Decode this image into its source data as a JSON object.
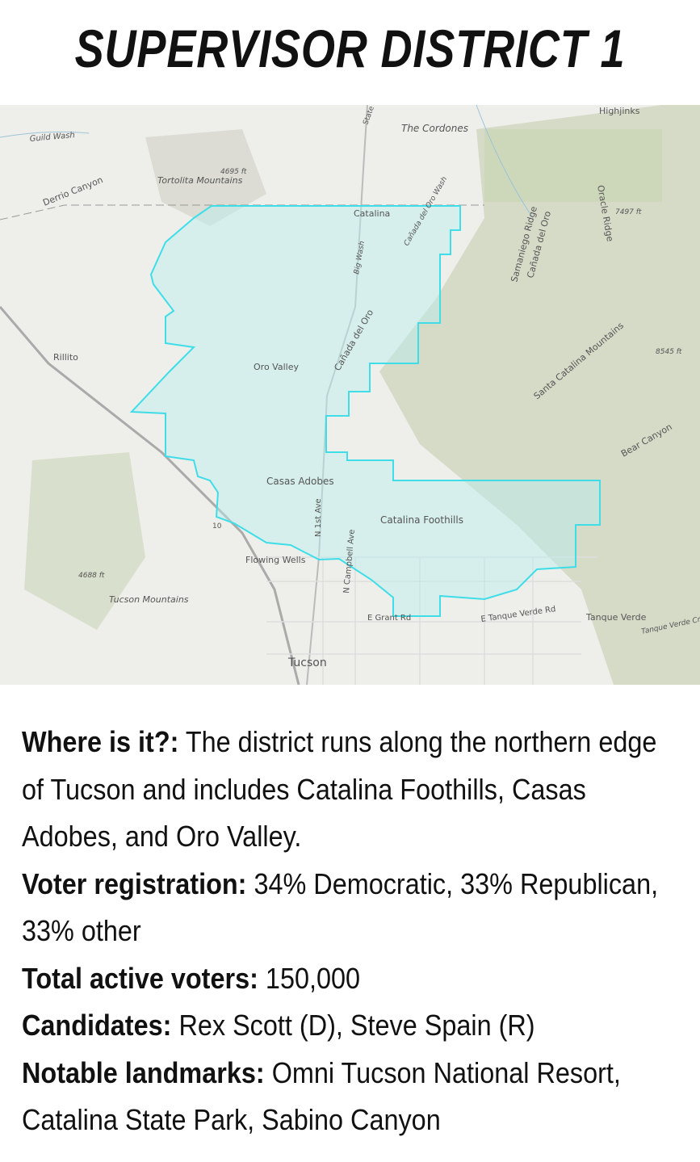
{
  "title": "SUPERVISOR DISTRICT 1",
  "map": {
    "labels": [
      "Guild Wash",
      "Derrio Canyon",
      "Tortolita Mountains",
      "4695 ft",
      "State",
      "The Cordones",
      "Highjinks",
      "Catalina",
      "Cañada del Oro Wash",
      "Big Wash",
      "Samaniego Ridge",
      "Cañada del Oro",
      "Oracle Ridge",
      "7497 ft",
      "Rillito",
      "Oro Valley",
      "Cañada del Oro",
      "Santa Catalina Mountains",
      "8545 ft",
      "Bear Canyon",
      "Casas Adobes",
      "N 1st Ave",
      "Catalina Foothills",
      "N Campbell Ave",
      "10",
      "Flowing Wells",
      "4688 ft",
      "Tucson Mountains",
      "E Grant Rd",
      "E Tanque Verde Rd",
      "Tanque Verde",
      "Tanque Verde Cr",
      "Tucson"
    ]
  },
  "info": [
    {
      "label": "Where is it?:",
      "text": "The district runs along the northern edge of Tucson and includes Catalina Foothills, Casas Adobes, and Oro Valley."
    },
    {
      "label": "Voter registration:",
      "text": "34% Democratic, 33% Republican, 33% other"
    },
    {
      "label": "Total active voters:",
      "text": "150,000"
    },
    {
      "label": "Candidates:",
      "text": "Rex Scott (D), Steve Spain (R)"
    },
    {
      "label": "Notable landmarks:",
      "text": "Omni Tucson National Resort, Catalina State Park, Sabino Canyon"
    }
  ]
}
